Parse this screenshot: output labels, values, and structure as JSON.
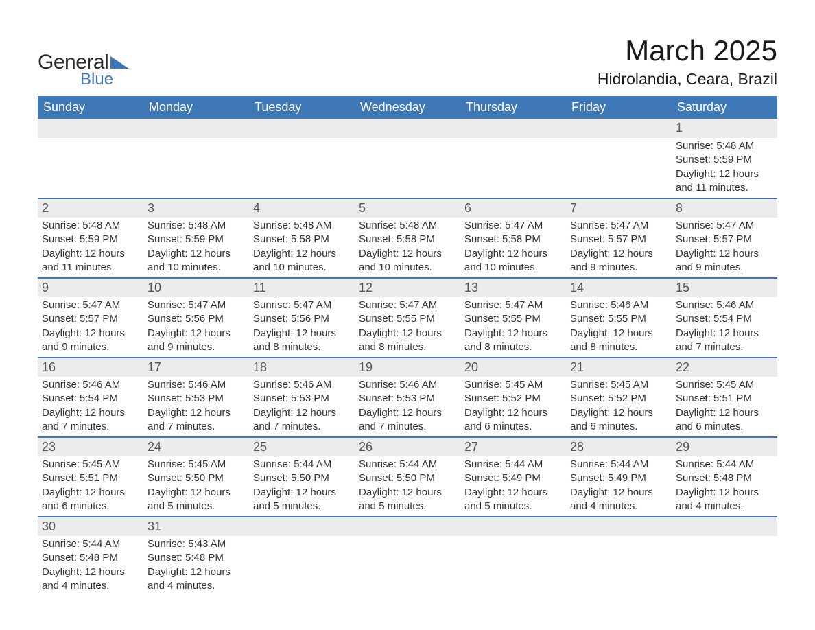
{
  "logo": {
    "text_general": "General",
    "text_blue": "Blue",
    "icon_color": "#3d77b6"
  },
  "title": "March 2025",
  "location": "Hidrolandia, Ceara, Brazil",
  "colors": {
    "header_bg": "#3d77b6",
    "header_text": "#ffffff",
    "daynum_bg": "#ececec",
    "row_divider": "#3d77b6",
    "text": "#333333",
    "page_bg": "#ffffff"
  },
  "typography": {
    "month_title_fontsize": 42,
    "location_fontsize": 23,
    "weekday_fontsize": 18,
    "daynum_fontsize": 18,
    "detail_fontsize": 15,
    "font_family": "Arial"
  },
  "weekdays": [
    "Sunday",
    "Monday",
    "Tuesday",
    "Wednesday",
    "Thursday",
    "Friday",
    "Saturday"
  ],
  "weeks": [
    [
      null,
      null,
      null,
      null,
      null,
      null,
      {
        "n": "1",
        "sr": "Sunrise: 5:48 AM",
        "ss": "Sunset: 5:59 PM",
        "d1": "Daylight: 12 hours",
        "d2": "and 11 minutes."
      }
    ],
    [
      {
        "n": "2",
        "sr": "Sunrise: 5:48 AM",
        "ss": "Sunset: 5:59 PM",
        "d1": "Daylight: 12 hours",
        "d2": "and 11 minutes."
      },
      {
        "n": "3",
        "sr": "Sunrise: 5:48 AM",
        "ss": "Sunset: 5:59 PM",
        "d1": "Daylight: 12 hours",
        "d2": "and 10 minutes."
      },
      {
        "n": "4",
        "sr": "Sunrise: 5:48 AM",
        "ss": "Sunset: 5:58 PM",
        "d1": "Daylight: 12 hours",
        "d2": "and 10 minutes."
      },
      {
        "n": "5",
        "sr": "Sunrise: 5:48 AM",
        "ss": "Sunset: 5:58 PM",
        "d1": "Daylight: 12 hours",
        "d2": "and 10 minutes."
      },
      {
        "n": "6",
        "sr": "Sunrise: 5:47 AM",
        "ss": "Sunset: 5:58 PM",
        "d1": "Daylight: 12 hours",
        "d2": "and 10 minutes."
      },
      {
        "n": "7",
        "sr": "Sunrise: 5:47 AM",
        "ss": "Sunset: 5:57 PM",
        "d1": "Daylight: 12 hours",
        "d2": "and 9 minutes."
      },
      {
        "n": "8",
        "sr": "Sunrise: 5:47 AM",
        "ss": "Sunset: 5:57 PM",
        "d1": "Daylight: 12 hours",
        "d2": "and 9 minutes."
      }
    ],
    [
      {
        "n": "9",
        "sr": "Sunrise: 5:47 AM",
        "ss": "Sunset: 5:57 PM",
        "d1": "Daylight: 12 hours",
        "d2": "and 9 minutes."
      },
      {
        "n": "10",
        "sr": "Sunrise: 5:47 AM",
        "ss": "Sunset: 5:56 PM",
        "d1": "Daylight: 12 hours",
        "d2": "and 9 minutes."
      },
      {
        "n": "11",
        "sr": "Sunrise: 5:47 AM",
        "ss": "Sunset: 5:56 PM",
        "d1": "Daylight: 12 hours",
        "d2": "and 8 minutes."
      },
      {
        "n": "12",
        "sr": "Sunrise: 5:47 AM",
        "ss": "Sunset: 5:55 PM",
        "d1": "Daylight: 12 hours",
        "d2": "and 8 minutes."
      },
      {
        "n": "13",
        "sr": "Sunrise: 5:47 AM",
        "ss": "Sunset: 5:55 PM",
        "d1": "Daylight: 12 hours",
        "d2": "and 8 minutes."
      },
      {
        "n": "14",
        "sr": "Sunrise: 5:46 AM",
        "ss": "Sunset: 5:55 PM",
        "d1": "Daylight: 12 hours",
        "d2": "and 8 minutes."
      },
      {
        "n": "15",
        "sr": "Sunrise: 5:46 AM",
        "ss": "Sunset: 5:54 PM",
        "d1": "Daylight: 12 hours",
        "d2": "and 7 minutes."
      }
    ],
    [
      {
        "n": "16",
        "sr": "Sunrise: 5:46 AM",
        "ss": "Sunset: 5:54 PM",
        "d1": "Daylight: 12 hours",
        "d2": "and 7 minutes."
      },
      {
        "n": "17",
        "sr": "Sunrise: 5:46 AM",
        "ss": "Sunset: 5:53 PM",
        "d1": "Daylight: 12 hours",
        "d2": "and 7 minutes."
      },
      {
        "n": "18",
        "sr": "Sunrise: 5:46 AM",
        "ss": "Sunset: 5:53 PM",
        "d1": "Daylight: 12 hours",
        "d2": "and 7 minutes."
      },
      {
        "n": "19",
        "sr": "Sunrise: 5:46 AM",
        "ss": "Sunset: 5:53 PM",
        "d1": "Daylight: 12 hours",
        "d2": "and 7 minutes."
      },
      {
        "n": "20",
        "sr": "Sunrise: 5:45 AM",
        "ss": "Sunset: 5:52 PM",
        "d1": "Daylight: 12 hours",
        "d2": "and 6 minutes."
      },
      {
        "n": "21",
        "sr": "Sunrise: 5:45 AM",
        "ss": "Sunset: 5:52 PM",
        "d1": "Daylight: 12 hours",
        "d2": "and 6 minutes."
      },
      {
        "n": "22",
        "sr": "Sunrise: 5:45 AM",
        "ss": "Sunset: 5:51 PM",
        "d1": "Daylight: 12 hours",
        "d2": "and 6 minutes."
      }
    ],
    [
      {
        "n": "23",
        "sr": "Sunrise: 5:45 AM",
        "ss": "Sunset: 5:51 PM",
        "d1": "Daylight: 12 hours",
        "d2": "and 6 minutes."
      },
      {
        "n": "24",
        "sr": "Sunrise: 5:45 AM",
        "ss": "Sunset: 5:50 PM",
        "d1": "Daylight: 12 hours",
        "d2": "and 5 minutes."
      },
      {
        "n": "25",
        "sr": "Sunrise: 5:44 AM",
        "ss": "Sunset: 5:50 PM",
        "d1": "Daylight: 12 hours",
        "d2": "and 5 minutes."
      },
      {
        "n": "26",
        "sr": "Sunrise: 5:44 AM",
        "ss": "Sunset: 5:50 PM",
        "d1": "Daylight: 12 hours",
        "d2": "and 5 minutes."
      },
      {
        "n": "27",
        "sr": "Sunrise: 5:44 AM",
        "ss": "Sunset: 5:49 PM",
        "d1": "Daylight: 12 hours",
        "d2": "and 5 minutes."
      },
      {
        "n": "28",
        "sr": "Sunrise: 5:44 AM",
        "ss": "Sunset: 5:49 PM",
        "d1": "Daylight: 12 hours",
        "d2": "and 4 minutes."
      },
      {
        "n": "29",
        "sr": "Sunrise: 5:44 AM",
        "ss": "Sunset: 5:48 PM",
        "d1": "Daylight: 12 hours",
        "d2": "and 4 minutes."
      }
    ],
    [
      {
        "n": "30",
        "sr": "Sunrise: 5:44 AM",
        "ss": "Sunset: 5:48 PM",
        "d1": "Daylight: 12 hours",
        "d2": "and 4 minutes."
      },
      {
        "n": "31",
        "sr": "Sunrise: 5:43 AM",
        "ss": "Sunset: 5:48 PM",
        "d1": "Daylight: 12 hours",
        "d2": "and 4 minutes."
      },
      null,
      null,
      null,
      null,
      null
    ]
  ]
}
